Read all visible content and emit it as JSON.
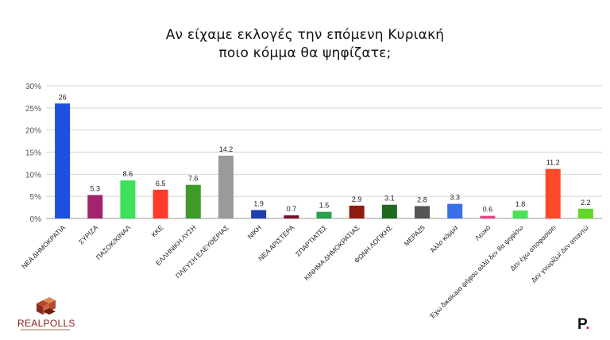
{
  "title": {
    "line1": "Αν είχαμε εκλογές την επόμενη Κυριακή",
    "line2": "ποιο κόμμα θα ψηφίζατε;"
  },
  "brand": {
    "realpolls": "REALPOLLS",
    "publisher_logo": "P",
    "publisher_dot": "."
  },
  "chart_data": {
    "type": "bar",
    "title": "Αν είχαμε εκλογές την επόμενη Κυριακή ποιο κόμμα θα ψηφίζατε;",
    "categories": [
      "ΝΕΑ ΔΗΜΟΚΡΑΤΙΑ",
      "ΣΥΡΙΖΑ",
      "ΠΑΣΟΚ/ΚΙΝΑΛ",
      "ΚΚΕ",
      "ΕΛΛΗΝΙΚΗ ΛΥΣΗ",
      "ΠΛΕΥΣΗ ΕΛΕΥΘΕΡΙΑΣ",
      "ΝΙΚΗ",
      "ΝΕΑ ΑΡΙΣΤΕΡΑ",
      "ΣΠΑΡΤΙΑΤΕΣ",
      "ΚΙΝΗΜΑ ΔΗΜΟΚΡΑΤΙΑΣ",
      "ΦΩΝΗ ΛΟΓΙΚΗΣ",
      "ΜΕΡΑ25",
      "Άλλο κόμμα",
      "Λευκό",
      "Έχω δικαίωμα ψήφου αλλά δεν θα ψηφίσω",
      "Δεν έχω αποφασίσει",
      "Δεν γνωρίζω/ Δεν απαντώ"
    ],
    "values": [
      26,
      5.3,
      8.6,
      6.5,
      7.6,
      14.2,
      1.9,
      0.7,
      1.5,
      2.9,
      3.1,
      2.8,
      3.3,
      0.6,
      1.8,
      11.2,
      2.2
    ],
    "value_labels": [
      "26",
      "5.3",
      "8.6",
      "6.5",
      "7.6",
      "14.2",
      "1.9",
      "0.7",
      "1.5",
      "2.9",
      "3.1",
      "2.8",
      "3.3",
      "0.6",
      "1.8",
      "11.2",
      "2.2"
    ],
    "colors": [
      "#1f4fe0",
      "#a1246c",
      "#3fe05a",
      "#ff3a2a",
      "#3f9a2a",
      "#9a9a9a",
      "#1f3fb0",
      "#7a1020",
      "#2aa04a",
      "#8f1a12",
      "#1f6a1f",
      "#555555",
      "#3a6fe8",
      "#e04a8a",
      "#4fe05a",
      "#ff4a2a",
      "#5fd82a"
    ],
    "ylim": [
      0,
      30
    ],
    "yticks": [
      "0%",
      "5%",
      "10%",
      "15%",
      "20%",
      "25%",
      "30%"
    ],
    "ytick_values": [
      0,
      5,
      10,
      15,
      20,
      25,
      30
    ],
    "xlabel": "",
    "ylabel": "",
    "grid": true
  }
}
